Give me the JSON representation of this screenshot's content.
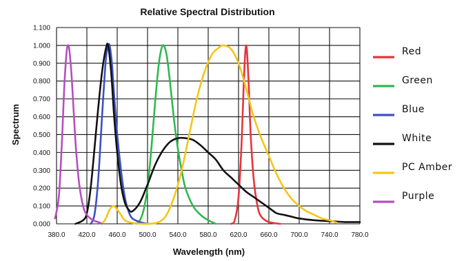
{
  "chart_data": {
    "type": "line",
    "title": "Relative Spectral Distribution",
    "xlabel": "Wavelength (nm)",
    "ylabel": "Spectrum",
    "xlim": [
      380,
      780
    ],
    "ylim": [
      0,
      1.1
    ],
    "grid": true,
    "legend_position": "right",
    "x_ticks": [
      "380.0",
      "420.0",
      "460.0",
      "500.0",
      "540.0",
      "580.0",
      "620.0",
      "660.0",
      "700.0",
      "740.0",
      "780.0"
    ],
    "y_ticks": [
      "0.000",
      "0.100",
      "0.200",
      "0.300",
      "0.400",
      "0.500",
      "0.600",
      "0.700",
      "0.800",
      "0.900",
      "1.000",
      "1.100"
    ],
    "series": [
      {
        "name": "Red",
        "color": "#e8333a",
        "points": [
          [
            610,
            0
          ],
          [
            615,
            0.02
          ],
          [
            620,
            0.15
          ],
          [
            624,
            0.45
          ],
          [
            627,
            0.8
          ],
          [
            630,
            1.0
          ],
          [
            633,
            0.82
          ],
          [
            636,
            0.5
          ],
          [
            640,
            0.25
          ],
          [
            645,
            0.1
          ],
          [
            650,
            0.04
          ],
          [
            660,
            0.01
          ],
          [
            675,
            0
          ]
        ]
      },
      {
        "name": "Green",
        "color": "#2fb84e",
        "points": [
          [
            485,
            0
          ],
          [
            490,
            0.02
          ],
          [
            495,
            0.08
          ],
          [
            500,
            0.2
          ],
          [
            505,
            0.42
          ],
          [
            510,
            0.68
          ],
          [
            515,
            0.9
          ],
          [
            520,
            1.0
          ],
          [
            525,
            0.95
          ],
          [
            530,
            0.78
          ],
          [
            535,
            0.58
          ],
          [
            540,
            0.42
          ],
          [
            545,
            0.3
          ],
          [
            550,
            0.2
          ],
          [
            560,
            0.1
          ],
          [
            570,
            0.05
          ],
          [
            580,
            0.02
          ],
          [
            590,
            0
          ]
        ]
      },
      {
        "name": "Blue",
        "color": "#3b4fc4",
        "points": [
          [
            425,
            0
          ],
          [
            430,
            0.05
          ],
          [
            435,
            0.25
          ],
          [
            440,
            0.6
          ],
          [
            445,
            0.92
          ],
          [
            448,
            0.99
          ],
          [
            450,
            1.0
          ],
          [
            453,
            0.9
          ],
          [
            456,
            0.72
          ],
          [
            460,
            0.5
          ],
          [
            465,
            0.3
          ],
          [
            470,
            0.15
          ],
          [
            475,
            0.07
          ],
          [
            480,
            0.03
          ],
          [
            490,
            0.01
          ],
          [
            500,
            0
          ]
        ]
      },
      {
        "name": "White",
        "color": "#111111",
        "points": [
          [
            405,
            0
          ],
          [
            415,
            0.02
          ],
          [
            420,
            0.06
          ],
          [
            425,
            0.2
          ],
          [
            430,
            0.42
          ],
          [
            435,
            0.65
          ],
          [
            440,
            0.85
          ],
          [
            445,
            0.98
          ],
          [
            448,
            1.0
          ],
          [
            452,
            0.85
          ],
          [
            456,
            0.6
          ],
          [
            460,
            0.4
          ],
          [
            465,
            0.22
          ],
          [
            470,
            0.12
          ],
          [
            475,
            0.08
          ],
          [
            480,
            0.07
          ],
          [
            490,
            0.12
          ],
          [
            500,
            0.22
          ],
          [
            510,
            0.33
          ],
          [
            520,
            0.41
          ],
          [
            530,
            0.46
          ],
          [
            540,
            0.48
          ],
          [
            550,
            0.48
          ],
          [
            560,
            0.47
          ],
          [
            570,
            0.44
          ],
          [
            580,
            0.4
          ],
          [
            590,
            0.36
          ],
          [
            600,
            0.3
          ],
          [
            610,
            0.26
          ],
          [
            620,
            0.22
          ],
          [
            630,
            0.18
          ],
          [
            640,
            0.15
          ],
          [
            650,
            0.12
          ],
          [
            660,
            0.09
          ],
          [
            670,
            0.06
          ],
          [
            680,
            0.05
          ],
          [
            690,
            0.04
          ],
          [
            700,
            0.03
          ],
          [
            720,
            0.02
          ],
          [
            740,
            0.015
          ],
          [
            760,
            0.01
          ],
          [
            780,
            0.01
          ]
        ]
      },
      {
        "name": "PC Amber",
        "color": "#f5c518",
        "points": [
          [
            440,
            0
          ],
          [
            445,
            0.03
          ],
          [
            450,
            0.08
          ],
          [
            455,
            0.1
          ],
          [
            460,
            0.08
          ],
          [
            465,
            0.05
          ],
          [
            470,
            0.02
          ],
          [
            480,
            0.005
          ],
          [
            500,
            0
          ],
          [
            515,
            0.01
          ],
          [
            525,
            0.05
          ],
          [
            535,
            0.15
          ],
          [
            545,
            0.3
          ],
          [
            555,
            0.5
          ],
          [
            565,
            0.7
          ],
          [
            575,
            0.85
          ],
          [
            585,
            0.95
          ],
          [
            595,
            0.99
          ],
          [
            600,
            1.0
          ],
          [
            610,
            0.98
          ],
          [
            620,
            0.9
          ],
          [
            630,
            0.76
          ],
          [
            640,
            0.6
          ],
          [
            650,
            0.48
          ],
          [
            660,
            0.38
          ],
          [
            670,
            0.28
          ],
          [
            680,
            0.2
          ],
          [
            690,
            0.14
          ],
          [
            700,
            0.1
          ],
          [
            710,
            0.07
          ],
          [
            720,
            0.05
          ],
          [
            730,
            0.03
          ],
          [
            740,
            0.02
          ],
          [
            750,
            0.005
          ]
        ]
      },
      {
        "name": "Purple",
        "color": "#b54ec0",
        "points": [
          [
            378,
            0.03
          ],
          [
            383,
            0.15
          ],
          [
            387,
            0.45
          ],
          [
            390,
            0.75
          ],
          [
            393,
            0.95
          ],
          [
            395,
            1.0
          ],
          [
            397,
            0.97
          ],
          [
            400,
            0.82
          ],
          [
            403,
            0.6
          ],
          [
            406,
            0.4
          ],
          [
            410,
            0.22
          ],
          [
            415,
            0.1
          ],
          [
            420,
            0.05
          ],
          [
            428,
            0.02
          ],
          [
            435,
            0.01
          ],
          [
            440,
            0
          ]
        ]
      }
    ]
  }
}
